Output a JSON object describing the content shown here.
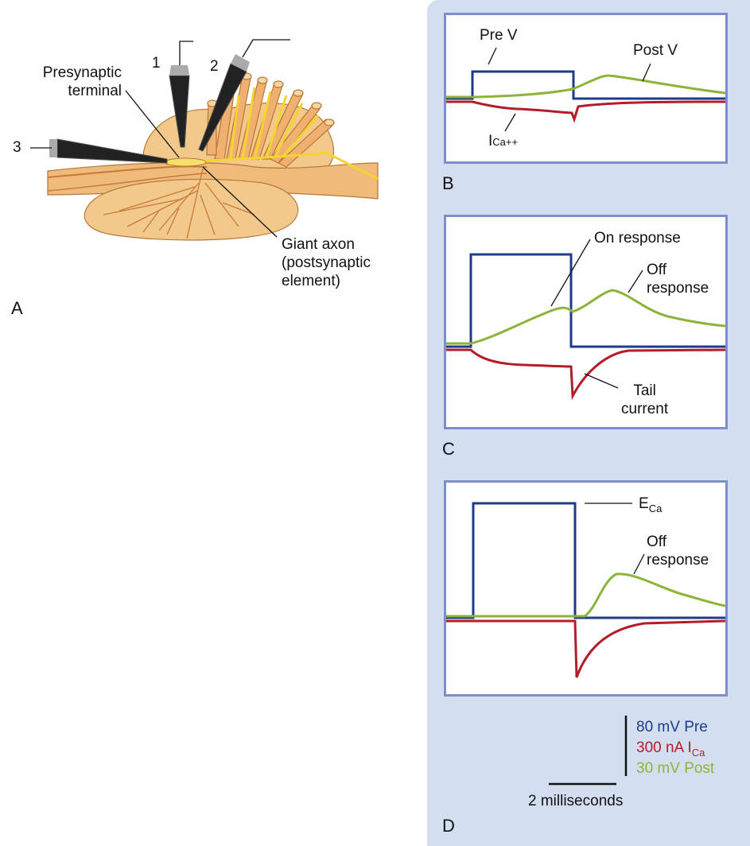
{
  "panel_a": {
    "letter": "A",
    "electrode_1": "1",
    "electrode_2": "2",
    "electrode_3": "3",
    "presynaptic_line1": "Presynaptic",
    "presynaptic_line2": "terminal",
    "giant_axon_line1": "Giant axon",
    "giant_axon_line2": "(postsynaptic",
    "giant_axon_line3": "element)"
  },
  "panel_b": {
    "letter": "B",
    "pre_v": "Pre V",
    "post_v": "Post V",
    "ica_main": "I",
    "ica_sub": "Ca++"
  },
  "panel_c": {
    "letter": "C",
    "on_response": "On response",
    "off_line1": "Off",
    "off_line2": "response",
    "tail_line1": "Tail",
    "tail_line2": "current"
  },
  "panel_d": {
    "letter": "D",
    "eca_main": "E",
    "eca_sub": "Ca",
    "off_line1": "Off",
    "off_line2": "response"
  },
  "scale": {
    "pre": "80 mV Pre",
    "ica_main": "300 nA I",
    "ica_sub": "Ca",
    "post": "30 mV Post",
    "time": "2 milliseconds"
  },
  "colors": {
    "pre": "#1f3a8a",
    "ica": "#b51c2a",
    "post": "#8db33a",
    "panel_bg": "#d3dff1",
    "box_border": "#7d8fc9"
  }
}
